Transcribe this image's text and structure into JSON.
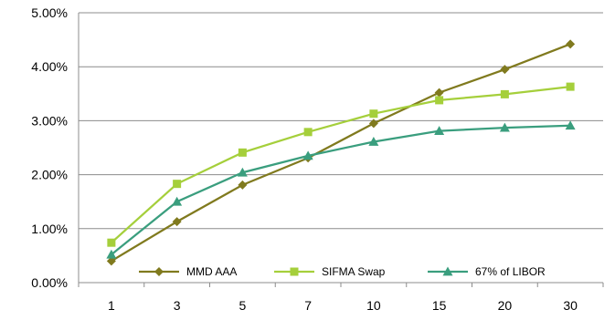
{
  "chart_data": {
    "type": "line",
    "title": "",
    "xlabel": "",
    "ylabel": "",
    "categories": [
      "1",
      "3",
      "5",
      "7",
      "10",
      "15",
      "20",
      "30"
    ],
    "ylim": [
      0,
      5
    ],
    "y_ticks": [
      0,
      1,
      2,
      3,
      4,
      5
    ],
    "y_tick_labels": [
      "0.00%",
      "1.00%",
      "2.00%",
      "3.00%",
      "4.00%",
      "5.00%"
    ],
    "grid": "horizontal",
    "legend_position": "bottom-inside",
    "series": [
      {
        "name": "MMD AAA",
        "values": [
          0.4,
          1.13,
          1.81,
          2.31,
          2.95,
          3.52,
          3.95,
          4.42
        ],
        "color": "#807a1e",
        "marker": "diamond"
      },
      {
        "name": "SIFMA Swap",
        "values": [
          0.74,
          1.83,
          2.41,
          2.79,
          3.13,
          3.38,
          3.49,
          3.63
        ],
        "color": "#a5cf3b",
        "marker": "square"
      },
      {
        "name": "67% of LIBOR",
        "values": [
          0.52,
          1.5,
          2.04,
          2.35,
          2.61,
          2.81,
          2.87,
          2.91
        ],
        "color": "#3a9e7e",
        "marker": "triangle"
      }
    ]
  }
}
